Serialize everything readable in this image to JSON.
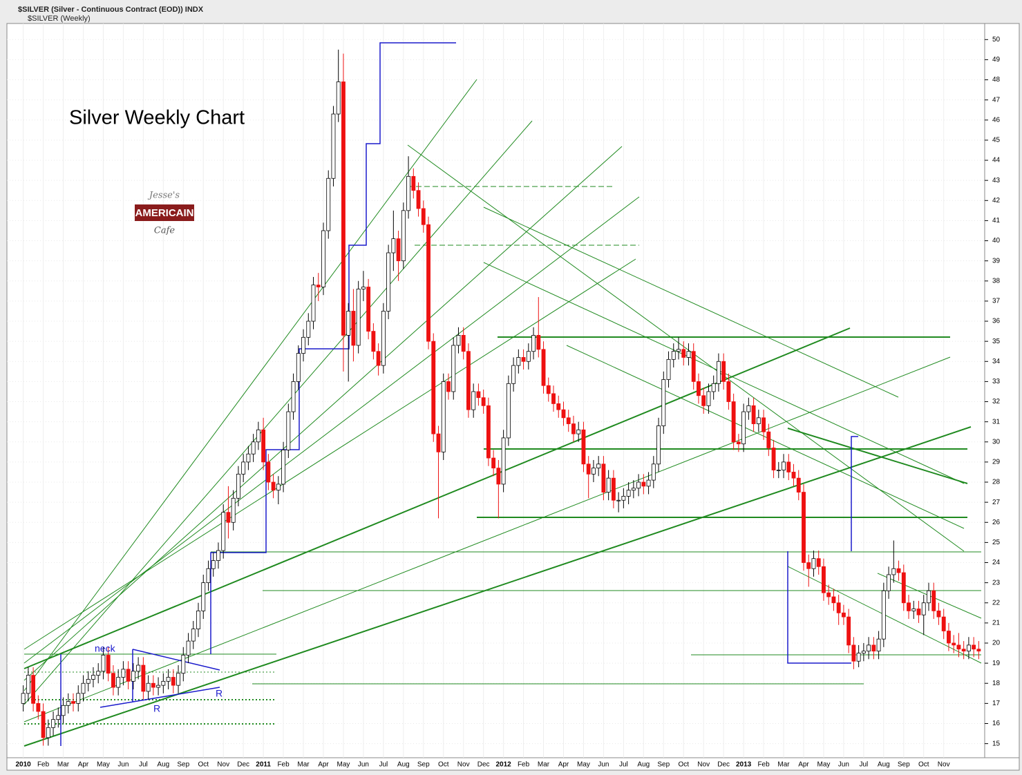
{
  "header": {
    "symbol_line": "$SILVER (Silver - Continuous Contract (EOD)) INDX",
    "series_line": "$SILVER (Weekly)"
  },
  "logo": {
    "top": "Jesse's",
    "middle": "AMERICAIN",
    "bottom": "Cafe"
  },
  "chart_data": {
    "type": "candlestick",
    "title": "Silver Weekly Chart",
    "annotations": {
      "neck": "neck",
      "r_left": "R",
      "r_right": "R"
    },
    "up_color": "#ffffff",
    "down_color": "#ee1111",
    "outline_color": "#000000",
    "grid": true,
    "ylim": [
      14.3,
      50.8
    ],
    "yticks": [
      15,
      16,
      17,
      18,
      19,
      20,
      21,
      22,
      23,
      24,
      25,
      26,
      27,
      28,
      29,
      30,
      31,
      32,
      33,
      34,
      35,
      36,
      37,
      38,
      39,
      40,
      41,
      42,
      43,
      44,
      45,
      46,
      47,
      48,
      49,
      50
    ],
    "categories": [
      "2010",
      null,
      null,
      null,
      "Feb",
      null,
      null,
      null,
      "Mar",
      null,
      null,
      null,
      "Apr",
      null,
      null,
      null,
      "May",
      null,
      null,
      null,
      "Jun",
      null,
      null,
      null,
      "Jul",
      null,
      null,
      null,
      "Aug",
      null,
      null,
      null,
      "Sep",
      null,
      null,
      null,
      "Oct",
      null,
      null,
      null,
      "Nov",
      null,
      null,
      null,
      "Dec",
      null,
      null,
      null,
      "2011",
      null,
      null,
      null,
      "Feb",
      null,
      null,
      null,
      "Mar",
      null,
      null,
      null,
      "Apr",
      null,
      null,
      null,
      "May",
      null,
      null,
      null,
      "Jun",
      null,
      null,
      null,
      "Jul",
      null,
      null,
      null,
      "Aug",
      null,
      null,
      null,
      "Sep",
      null,
      null,
      null,
      "Oct",
      null,
      null,
      null,
      "Nov",
      null,
      null,
      null,
      "Dec",
      null,
      null,
      null,
      "2012",
      null,
      null,
      null,
      "Feb",
      null,
      null,
      null,
      "Mar",
      null,
      null,
      null,
      "Apr",
      null,
      null,
      null,
      "May",
      null,
      null,
      null,
      "Jun",
      null,
      null,
      null,
      "Jul",
      null,
      null,
      null,
      "Aug",
      null,
      null,
      null,
      "Sep",
      null,
      null,
      null,
      "Oct",
      null,
      null,
      null,
      "Nov",
      null,
      null,
      null,
      "Dec",
      null,
      null,
      null,
      "2013",
      null,
      null,
      null,
      "Feb",
      null,
      null,
      null,
      "Mar",
      null,
      null,
      null,
      "Apr",
      null,
      null,
      null,
      "May",
      null,
      null,
      null,
      "Jun",
      null,
      null,
      null,
      "Jul",
      null,
      null,
      null,
      "Aug",
      null,
      null,
      null,
      "Sep",
      null,
      null,
      null,
      "Oct",
      null,
      null,
      null,
      "Nov",
      null,
      null,
      null,
      null,
      null,
      null,
      null
    ],
    "open": [
      17.0,
      17.5,
      18.4,
      17.0,
      16.6,
      15.3,
      15.8,
      16.2,
      16.4,
      16.9,
      17.1,
      17.0,
      17.5,
      18.0,
      18.2,
      18.4,
      18.6,
      19.4,
      18.5,
      17.8,
      18.3,
      18.7,
      18.1,
      18.6,
      18.9,
      17.6,
      18.0,
      17.8,
      17.9,
      18.1,
      18.3,
      17.9,
      18.5,
      19.4,
      20.1,
      20.7,
      21.6,
      23.0,
      23.7,
      24.1,
      24.6,
      26.5,
      26.0,
      27.2,
      28.4,
      29.0,
      29.4,
      30.0,
      30.6,
      29.0,
      28.0,
      27.6,
      27.9,
      29.6,
      31.5,
      33.0,
      34.4,
      35.2,
      36.0,
      37.8,
      37.7,
      40.5,
      43.1,
      46.3,
      47.9,
      35.3,
      36.5,
      34.8,
      37.6,
      37.7,
      35.5,
      34.5,
      33.8,
      36.5,
      39.4,
      40.1,
      39.0,
      41.5,
      43.2,
      42.5,
      41.6,
      40.8,
      35.0,
      30.4,
      29.5,
      33.0,
      32.5,
      34.8,
      35.3,
      34.5,
      31.6,
      32.5,
      32.2,
      31.8,
      29.2,
      28.7,
      27.9,
      30.2,
      32.9,
      33.8,
      34.2,
      34.0,
      34.5,
      35.3,
      34.6,
      32.8,
      32.4,
      31.9,
      31.6,
      31.2,
      30.9,
      30.4,
      30.6,
      28.9,
      28.4,
      28.7,
      28.9,
      27.5,
      28.2,
      27.1,
      27.1,
      27.3,
      27.6,
      27.7,
      28.0,
      27.8,
      28.1,
      28.9,
      30.8,
      33.1,
      34.1,
      34.5,
      34.6,
      34.2,
      34.5,
      33.0,
      32.3,
      31.8,
      32.5,
      32.9,
      34.0,
      33.0,
      32.0,
      30.0,
      29.9,
      31.5,
      31.8,
      30.9,
      31.2,
      30.5,
      29.7,
      28.6,
      28.6,
      29.0,
      28.5,
      28.2,
      27.5,
      24.0,
      23.7,
      24.2,
      23.8,
      22.5,
      22.3,
      22.0,
      21.5,
      21.3,
      19.9,
      19.1,
      19.5,
      19.6,
      19.9,
      19.6,
      20.2,
      22.6,
      23.4,
      23.7,
      23.5,
      22.0,
      21.6,
      21.7,
      21.4,
      22.0,
      22.6,
      21.6,
      21.3,
      20.6,
      20.0,
      19.9,
      19.7,
      19.6,
      19.9,
      19.7
    ],
    "high": [
      17.9,
      18.8,
      18.8,
      17.4,
      17.0,
      16.2,
      16.6,
      16.8,
      17.3,
      17.5,
      17.5,
      17.9,
      18.4,
      18.6,
      18.8,
      19.0,
      19.8,
      19.8,
      18.9,
      18.7,
      19.1,
      19.1,
      19.0,
      19.3,
      19.3,
      18.4,
      18.4,
      18.3,
      18.5,
      18.7,
      18.7,
      18.9,
      19.8,
      20.5,
      21.1,
      22.0,
      23.4,
      24.1,
      24.5,
      25.0,
      26.9,
      27.8,
      27.6,
      28.8,
      29.4,
      29.8,
      30.4,
      31.0,
      31.2,
      29.4,
      28.4,
      28.3,
      30.0,
      31.9,
      33.4,
      34.8,
      35.6,
      36.4,
      38.2,
      38.4,
      40.9,
      43.5,
      46.7,
      49.5,
      49.3,
      36.9,
      37.6,
      38.0,
      38.5,
      38.1,
      35.9,
      34.9,
      36.9,
      39.8,
      41.5,
      40.5,
      41.9,
      44.2,
      43.6,
      42.9,
      42.0,
      41.2,
      35.4,
      30.8,
      33.4,
      33.4,
      35.2,
      35.7,
      35.7,
      34.9,
      32.9,
      32.9,
      32.6,
      32.2,
      29.6,
      29.1,
      30.6,
      33.3,
      34.2,
      34.6,
      34.6,
      34.9,
      35.7,
      37.2,
      35.0,
      33.2,
      32.8,
      32.3,
      32.0,
      31.6,
      31.3,
      31.0,
      31.0,
      29.3,
      29.1,
      29.3,
      29.3,
      28.6,
      28.6,
      27.5,
      27.7,
      28.0,
      28.1,
      28.4,
      28.4,
      28.5,
      29.3,
      31.2,
      33.5,
      34.5,
      34.9,
      35.2,
      35.0,
      34.9,
      34.9,
      33.4,
      32.7,
      32.9,
      33.3,
      34.4,
      34.4,
      33.4,
      32.4,
      30.4,
      31.9,
      32.2,
      32.2,
      31.6,
      31.6,
      30.9,
      30.1,
      29.0,
      29.4,
      29.4,
      28.9,
      28.6,
      27.9,
      24.4,
      24.6,
      24.6,
      24.2,
      22.9,
      22.7,
      22.4,
      21.9,
      21.7,
      20.3,
      19.9,
      20.0,
      20.3,
      20.3,
      20.6,
      23.0,
      23.8,
      25.1,
      24.1,
      23.9,
      22.4,
      22.1,
      22.1,
      22.4,
      23.0,
      23.0,
      22.0,
      21.7,
      21.0,
      20.4,
      20.5,
      20.1,
      20.3,
      20.3,
      20.1
    ],
    "low": [
      16.6,
      17.1,
      16.6,
      16.2,
      14.9,
      14.9,
      15.4,
      15.8,
      16.0,
      16.5,
      16.6,
      16.6,
      17.1,
      17.6,
      17.8,
      18.0,
      18.2,
      18.1,
      17.4,
      17.4,
      17.9,
      17.7,
      17.7,
      18.2,
      17.2,
      17.2,
      17.4,
      17.4,
      17.5,
      17.7,
      17.5,
      17.5,
      18.1,
      19.0,
      19.7,
      20.3,
      21.2,
      22.6,
      23.3,
      23.7,
      24.2,
      25.2,
      25.6,
      26.8,
      28.0,
      28.6,
      29.0,
      29.6,
      28.6,
      27.6,
      27.2,
      26.9,
      27.5,
      29.2,
      31.1,
      32.6,
      34.0,
      34.8,
      35.6,
      37.0,
      37.3,
      40.1,
      42.7,
      45.9,
      33.5,
      33.0,
      34.0,
      34.4,
      37.0,
      35.1,
      34.1,
      33.3,
      33.4,
      36.1,
      38.5,
      38.0,
      38.6,
      41.1,
      42.1,
      41.2,
      40.4,
      34.6,
      30.0,
      26.2,
      29.1,
      32.1,
      32.1,
      34.4,
      34.1,
      31.2,
      31.2,
      31.8,
      31.4,
      28.8,
      28.3,
      26.2,
      27.5,
      29.8,
      32.5,
      33.4,
      33.6,
      33.6,
      34.1,
      34.2,
      32.4,
      32.0,
      31.5,
      31.2,
      30.8,
      30.5,
      30.0,
      30.0,
      28.5,
      27.2,
      28.0,
      28.3,
      27.1,
      27.1,
      26.7,
      26.5,
      26.7,
      26.9,
      27.2,
      27.3,
      27.4,
      27.4,
      27.7,
      28.5,
      30.4,
      32.7,
      33.7,
      34.1,
      33.8,
      33.8,
      32.6,
      31.9,
      31.4,
      31.4,
      32.1,
      32.5,
      32.6,
      31.6,
      29.6,
      29.5,
      29.5,
      31.1,
      30.5,
      30.5,
      30.1,
      29.3,
      28.2,
      28.2,
      28.2,
      28.1,
      27.8,
      27.1,
      23.6,
      22.8,
      23.3,
      23.4,
      22.1,
      21.9,
      21.6,
      20.9,
      20.9,
      19.5,
      18.7,
      18.8,
      19.1,
      19.2,
      19.2,
      19.2,
      19.8,
      22.2,
      23.0,
      23.1,
      21.6,
      21.2,
      21.2,
      21.0,
      20.4,
      21.6,
      21.2,
      20.9,
      20.2,
      19.6,
      19.5,
      19.3,
      19.2,
      19.2,
      19.3,
      19.2
    ],
    "close": [
      17.5,
      18.4,
      17.0,
      16.6,
      15.3,
      15.8,
      16.2,
      16.4,
      16.9,
      17.1,
      17.0,
      17.5,
      18.0,
      18.2,
      18.4,
      18.6,
      19.4,
      18.5,
      17.8,
      18.3,
      18.7,
      18.1,
      18.6,
      18.9,
      17.6,
      18.0,
      17.8,
      17.9,
      18.1,
      18.3,
      17.9,
      18.5,
      19.4,
      20.1,
      20.7,
      21.6,
      23.0,
      23.7,
      24.1,
      24.6,
      26.5,
      26.0,
      27.2,
      28.4,
      29.0,
      29.4,
      30.0,
      30.6,
      29.0,
      28.0,
      27.6,
      27.9,
      29.6,
      31.5,
      33.0,
      34.4,
      35.2,
      36.0,
      37.8,
      37.7,
      40.5,
      43.1,
      46.3,
      47.9,
      35.3,
      36.5,
      34.8,
      37.6,
      37.7,
      35.5,
      34.5,
      33.8,
      36.5,
      39.4,
      40.1,
      39.0,
      41.5,
      43.2,
      42.5,
      41.6,
      40.8,
      35.0,
      30.4,
      29.5,
      33.0,
      32.5,
      34.8,
      35.3,
      34.5,
      31.6,
      32.5,
      32.2,
      31.8,
      29.2,
      28.7,
      27.9,
      30.2,
      32.9,
      33.8,
      34.2,
      34.0,
      34.5,
      35.3,
      34.6,
      32.8,
      32.4,
      31.9,
      31.6,
      31.2,
      30.9,
      30.4,
      30.6,
      28.9,
      28.4,
      28.7,
      28.9,
      27.5,
      28.2,
      27.1,
      27.1,
      27.3,
      27.6,
      27.7,
      28.0,
      27.8,
      28.1,
      28.9,
      30.8,
      33.1,
      34.1,
      34.5,
      34.6,
      34.2,
      34.5,
      33.0,
      32.3,
      31.8,
      32.5,
      32.9,
      34.0,
      33.0,
      32.0,
      30.0,
      29.9,
      31.5,
      31.8,
      30.9,
      31.2,
      30.5,
      29.7,
      28.6,
      28.6,
      29.0,
      28.5,
      28.2,
      27.5,
      24.0,
      23.7,
      24.2,
      23.8,
      22.5,
      22.3,
      22.0,
      21.5,
      21.3,
      19.9,
      19.1,
      19.5,
      19.6,
      19.9,
      19.6,
      20.2,
      22.6,
      23.4,
      23.7,
      23.5,
      22.0,
      21.6,
      21.7,
      21.4,
      22.0,
      22.6,
      21.6,
      21.3,
      20.6,
      20.0,
      19.9,
      19.7,
      19.6,
      19.9,
      19.7,
      19.6
    ]
  }
}
